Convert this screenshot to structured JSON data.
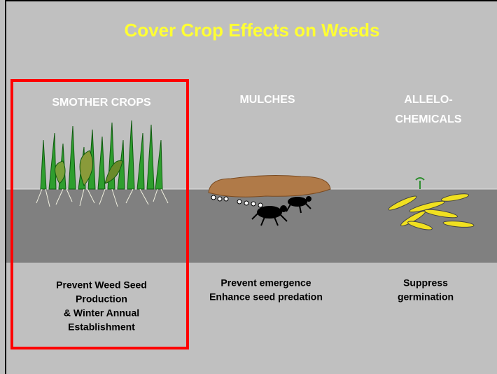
{
  "title": "Cover Crop Effects on Weeds",
  "panels": [
    {
      "heading": [
        "SMOTHER CROPS"
      ],
      "caption": [
        "Prevent Weed Seed",
        "Production",
        "& Winter Annual",
        "Establishment"
      ]
    },
    {
      "heading": [
        "MULCHES"
      ],
      "caption": [
        "Prevent emergence",
        "Enhance seed predation"
      ]
    },
    {
      "heading": [
        "ALLELO-",
        "CHEMICALS"
      ],
      "caption": [
        "Suppress",
        "germination"
      ]
    }
  ]
}
